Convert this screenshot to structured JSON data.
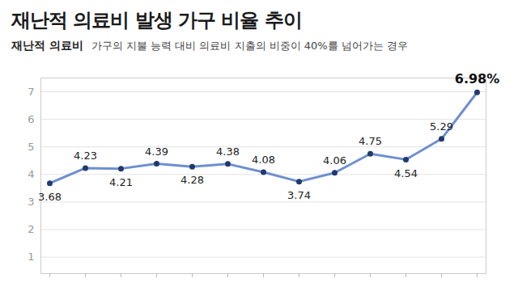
{
  "chart_data": {
    "type": "line",
    "title": "재난적 의료비 발생 가구 비율 추이",
    "subtitle": [
      "재난적 의료비",
      "가구의 지불 능력 대비 의료비 지출의 비중이 40%를 넘어가는 경우"
    ],
    "categories": [
      null,
      null,
      null,
      null,
      null,
      null,
      null,
      null,
      null,
      null,
      null,
      null,
      null
    ],
    "values": [
      3.68,
      4.23,
      4.21,
      4.39,
      4.28,
      4.38,
      4.08,
      3.74,
      4.06,
      4.75,
      4.54,
      5.29,
      6.98
    ],
    "value_labels": [
      "3.68",
      "4.23",
      "4.21",
      "4.39",
      "4.28",
      "4.38",
      "4.08",
      "3.74",
      "4.06",
      "4.75",
      "4.54",
      "5.29",
      "6.98%"
    ],
    "color": "#6d8fd0",
    "marker": "circle",
    "ylim": [
      0.4,
      7.5
    ],
    "yticks": [
      1,
      2,
      3,
      4,
      5,
      6,
      7
    ],
    "grid": true,
    "data_labels": true
  }
}
